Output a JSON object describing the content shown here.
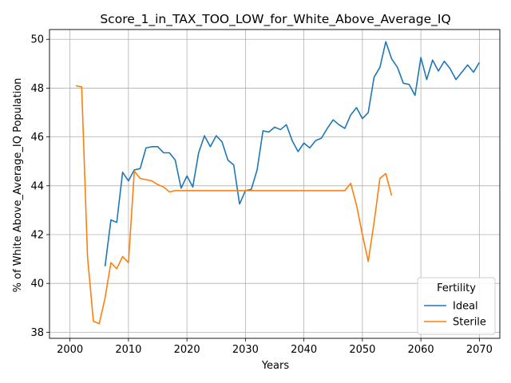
{
  "chart_data": {
    "type": "line",
    "title": "Score_1_in_TAX_TOO_LOW_for_White_Above_Average_IQ",
    "xlabel": "Years",
    "ylabel": "% of White Above_Average_IQ Population",
    "xlim": [
      1996.5,
      2073.5
    ],
    "ylim": [
      37.75,
      50.4
    ],
    "xticks": [
      2000,
      2010,
      2020,
      2030,
      2040,
      2050,
      2060,
      2070
    ],
    "yticks": [
      38,
      40,
      42,
      44,
      46,
      48,
      50
    ],
    "grid": true,
    "legend": {
      "title": "Fertility",
      "position": "lower-right",
      "entries": [
        "Ideal",
        "Sterile"
      ]
    },
    "series": [
      {
        "name": "Ideal",
        "color": "#1f77b4",
        "x": [
          2006,
          2007,
          2008,
          2009,
          2010,
          2011,
          2012,
          2013,
          2014,
          2015,
          2016,
          2017,
          2018,
          2019,
          2020,
          2021,
          2022,
          2023,
          2024,
          2025,
          2026,
          2027,
          2028,
          2029,
          2030,
          2031,
          2032,
          2033,
          2034,
          2035,
          2036,
          2037,
          2038,
          2039,
          2040,
          2041,
          2042,
          2043,
          2044,
          2045,
          2046,
          2047,
          2048,
          2049,
          2050,
          2051,
          2052,
          2053,
          2054,
          2055,
          2056,
          2057,
          2058,
          2059,
          2060,
          2061,
          2062,
          2063,
          2064,
          2065,
          2066,
          2067,
          2068,
          2069,
          2070
        ],
        "y": [
          40.7,
          42.6,
          42.5,
          44.55,
          44.2,
          44.65,
          44.7,
          45.55,
          45.6,
          45.6,
          45.35,
          45.35,
          45.05,
          43.9,
          44.4,
          43.95,
          45.35,
          46.05,
          45.6,
          46.05,
          45.8,
          45.05,
          44.85,
          43.25,
          43.8,
          43.85,
          44.65,
          46.25,
          46.2,
          46.4,
          46.3,
          46.5,
          45.85,
          45.4,
          45.75,
          45.55,
          45.85,
          45.95,
          46.35,
          46.7,
          46.5,
          46.35,
          46.9,
          47.2,
          46.75,
          47.0,
          48.45,
          48.85,
          49.9,
          49.2,
          48.85,
          48.2,
          48.15,
          47.7,
          49.25,
          48.35,
          49.15,
          48.7,
          49.1,
          48.8,
          48.35,
          48.65,
          48.95,
          48.65,
          49.05
        ]
      },
      {
        "name": "Sterile",
        "color": "#ff7f0e",
        "x": [
          2001,
          2002,
          2003,
          2004,
          2005,
          2006,
          2007,
          2008,
          2009,
          2010,
          2011,
          2012,
          2013,
          2014,
          2015,
          2016,
          2017,
          2018,
          2019,
          2020,
          2021,
          2022,
          2023,
          2024,
          2025,
          2026,
          2027,
          2028,
          2029,
          2030,
          2031,
          2032,
          2033,
          2034,
          2035,
          2036,
          2037,
          2038,
          2039,
          2040,
          2041,
          2042,
          2043,
          2044,
          2045,
          2046,
          2047,
          2048,
          2049,
          2050,
          2051,
          2052,
          2053,
          2054,
          2055
        ],
        "y": [
          48.1,
          48.05,
          41.1,
          38.45,
          38.35,
          39.4,
          40.85,
          40.6,
          41.1,
          40.85,
          44.6,
          44.3,
          44.25,
          44.2,
          44.05,
          43.95,
          43.75,
          43.8,
          43.8,
          43.8,
          43.8,
          43.8,
          43.8,
          43.8,
          43.8,
          43.8,
          43.8,
          43.8,
          43.8,
          43.8,
          43.8,
          43.8,
          43.8,
          43.8,
          43.8,
          43.8,
          43.8,
          43.8,
          43.8,
          43.8,
          43.8,
          43.8,
          43.8,
          43.8,
          43.8,
          43.8,
          43.8,
          44.1,
          43.2,
          42.0,
          40.9,
          42.5,
          44.3,
          44.5,
          43.6
        ]
      }
    ]
  }
}
